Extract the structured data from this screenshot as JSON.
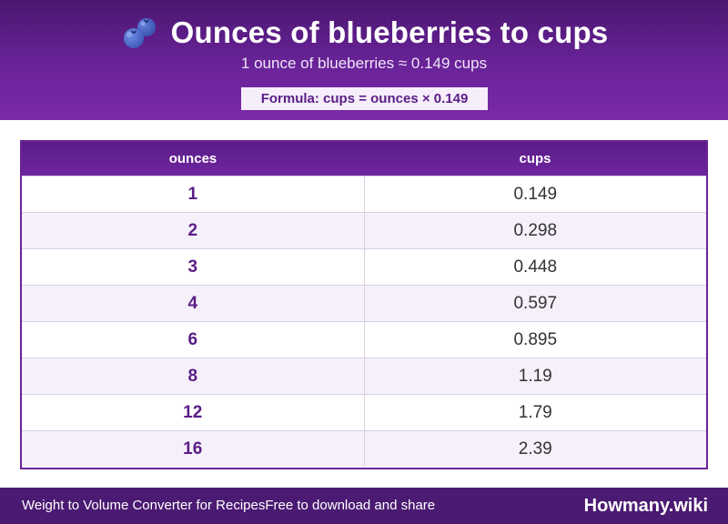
{
  "header": {
    "title": "Ounces of blueberries to cups",
    "subtitle": "1 ounce of blueberries ≈ 0.149 cups",
    "formula": "Formula: cups = ounces × 0.149",
    "icon": "blueberry-icon"
  },
  "table": {
    "columns": [
      "ounces",
      "cups"
    ],
    "rows": [
      {
        "ounces": "1",
        "cups": "0.149"
      },
      {
        "ounces": "2",
        "cups": "0.298"
      },
      {
        "ounces": "3",
        "cups": "0.448"
      },
      {
        "ounces": "4",
        "cups": "0.597"
      },
      {
        "ounces": "6",
        "cups": "0.895"
      },
      {
        "ounces": "8",
        "cups": "1.19"
      },
      {
        "ounces": "12",
        "cups": "1.79"
      },
      {
        "ounces": "16",
        "cups": "2.39"
      }
    ]
  },
  "footer": {
    "left_text_1": "Weight to Volume Converter for Recipes",
    "left_text_2": "Free to download and share",
    "brand": "Howmany.wiki"
  },
  "colors": {
    "accent": "#6a2399",
    "header_dark": "#4a1770",
    "row_alt": "#f5f0fa"
  }
}
